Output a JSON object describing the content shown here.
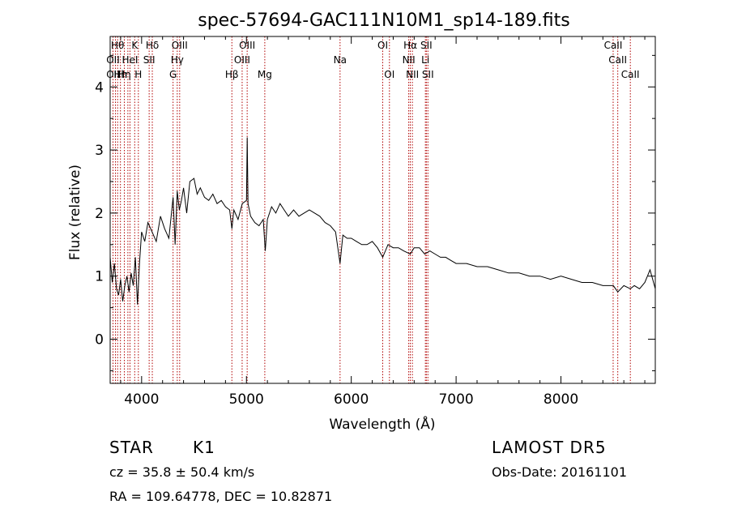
{
  "chart_data": {
    "type": "line",
    "title": "spec-57694-GAC111N10M1_sp14-189.fits",
    "xlabel": "Wavelength (Å)",
    "ylabel": "Flux (relative)",
    "xlim": [
      3700,
      8900
    ],
    "ylim": [
      -0.7,
      4.8
    ],
    "xticks": [
      4000,
      5000,
      6000,
      7000,
      8000
    ],
    "yticks": [
      0,
      1,
      2,
      3,
      4
    ],
    "line_color": "#000000",
    "marker_color": "#b00000",
    "series": [
      {
        "x": [
          3700,
          3720,
          3740,
          3760,
          3780,
          3800,
          3820,
          3840,
          3860,
          3880,
          3900,
          3920,
          3940,
          3960,
          3980,
          4000,
          4030,
          4060,
          4100,
          4140,
          4180,
          4220,
          4260,
          4300,
          4320,
          4340,
          4360,
          4380,
          4400,
          4430,
          4460,
          4500,
          4530,
          4560,
          4600,
          4640,
          4680,
          4720,
          4760,
          4800,
          4840,
          4861,
          4880,
          4920,
          4960,
          5000,
          5007,
          5015,
          5040,
          5080,
          5120,
          5160,
          5180,
          5200,
          5240,
          5280,
          5320,
          5360,
          5400,
          5450,
          5500,
          5550,
          5600,
          5650,
          5700,
          5750,
          5800,
          5850,
          5893,
          5920,
          5960,
          6000,
          6050,
          6100,
          6150,
          6200,
          6250,
          6300,
          6350,
          6400,
          6450,
          6500,
          6563,
          6600,
          6650,
          6700,
          6750,
          6800,
          6850,
          6900,
          6950,
          7000,
          7100,
          7200,
          7300,
          7400,
          7500,
          7600,
          7700,
          7800,
          7900,
          8000,
          8100,
          8200,
          8300,
          8400,
          8500,
          8542,
          8600,
          8662,
          8700,
          8750,
          8800,
          8850,
          8900
        ],
        "y": [
          1.3,
          0.9,
          1.2,
          0.8,
          0.7,
          0.95,
          0.6,
          0.85,
          1.0,
          0.75,
          1.05,
          0.85,
          1.3,
          0.55,
          1.2,
          1.7,
          1.55,
          1.85,
          1.7,
          1.55,
          1.95,
          1.75,
          1.6,
          2.25,
          1.5,
          2.35,
          2.05,
          2.2,
          2.4,
          2.0,
          2.5,
          2.55,
          2.3,
          2.4,
          2.25,
          2.2,
          2.3,
          2.15,
          2.2,
          2.1,
          2.05,
          1.75,
          2.05,
          1.9,
          2.15,
          2.2,
          3.2,
          2.15,
          1.95,
          1.85,
          1.8,
          1.9,
          1.4,
          1.9,
          2.1,
          2.0,
          2.15,
          2.05,
          1.95,
          2.05,
          1.95,
          2.0,
          2.05,
          2.0,
          1.95,
          1.85,
          1.8,
          1.7,
          1.2,
          1.65,
          1.6,
          1.6,
          1.55,
          1.5,
          1.5,
          1.55,
          1.45,
          1.3,
          1.5,
          1.45,
          1.45,
          1.4,
          1.35,
          1.45,
          1.45,
          1.35,
          1.4,
          1.35,
          1.3,
          1.3,
          1.25,
          1.2,
          1.2,
          1.15,
          1.15,
          1.1,
          1.05,
          1.05,
          1.0,
          1.0,
          0.95,
          1.0,
          0.95,
          0.9,
          0.9,
          0.85,
          0.85,
          0.75,
          0.85,
          0.8,
          0.85,
          0.8,
          0.9,
          1.1,
          0.8
        ]
      }
    ],
    "lines": [
      {
        "x": 3727,
        "rows": [
          [
            "OII",
            1
          ],
          [
            "OII",
            2
          ]
        ]
      },
      {
        "x": 3750,
        "rows": []
      },
      {
        "x": 3771,
        "rows": [
          [
            "Hθ",
            0
          ]
        ]
      },
      {
        "x": 3798,
        "rows": [
          [
            "Hh",
            2
          ]
        ]
      },
      {
        "x": 3835,
        "rows": [
          [
            "Hη",
            2
          ]
        ]
      },
      {
        "x": 3869,
        "rows": []
      },
      {
        "x": 3889,
        "rows": [
          [
            "HeI",
            1
          ]
        ]
      },
      {
        "x": 3934,
        "rows": [
          [
            "K",
            0
          ]
        ]
      },
      {
        "x": 3969,
        "rows": [
          [
            "H",
            2
          ]
        ]
      },
      {
        "x": 4072,
        "rows": [
          [
            "SII",
            1
          ]
        ]
      },
      {
        "x": 4102,
        "rows": [
          [
            "Hδ",
            0
          ]
        ]
      },
      {
        "x": 4300,
        "rows": [
          [
            "G",
            2
          ]
        ]
      },
      {
        "x": 4340,
        "rows": [
          [
            "Hγ",
            1
          ]
        ]
      },
      {
        "x": 4363,
        "rows": [
          [
            "OIII",
            0
          ]
        ]
      },
      {
        "x": 4861,
        "rows": [
          [
            "Hβ",
            2
          ]
        ]
      },
      {
        "x": 4959,
        "rows": [
          [
            "OIII",
            1
          ]
        ]
      },
      {
        "x": 5007,
        "rows": [
          [
            "OIII",
            0
          ]
        ]
      },
      {
        "x": 5175,
        "rows": [
          [
            "Mg",
            2
          ]
        ]
      },
      {
        "x": 5893,
        "rows": [
          [
            "Na",
            1
          ]
        ]
      },
      {
        "x": 6300,
        "rows": [
          [
            "OI",
            0
          ]
        ]
      },
      {
        "x": 6364,
        "rows": [
          [
            "OI",
            2
          ]
        ]
      },
      {
        "x": 6548,
        "rows": [
          [
            "NII",
            1
          ]
        ]
      },
      {
        "x": 6563,
        "rows": [
          [
            "Hα",
            0
          ]
        ]
      },
      {
        "x": 6583,
        "rows": [
          [
            "NII",
            2
          ]
        ]
      },
      {
        "x": 6707,
        "rows": [
          [
            "Li",
            1
          ]
        ]
      },
      {
        "x": 6716,
        "rows": [
          [
            "SII",
            0
          ]
        ]
      },
      {
        "x": 6731,
        "rows": [
          [
            "SII",
            2
          ]
        ]
      },
      {
        "x": 8498,
        "rows": [
          [
            "CaII",
            0
          ]
        ]
      },
      {
        "x": 8542,
        "rows": [
          [
            "CaII",
            1
          ]
        ]
      },
      {
        "x": 8662,
        "rows": [
          [
            "CaII",
            2
          ]
        ]
      }
    ]
  },
  "footer": {
    "object_class": "STAR",
    "subclass": "K1",
    "survey": "LAMOST DR5",
    "cz": "cz = 35.8 ± 50.4 km/s",
    "obs_date": "Obs-Date: 20161101",
    "coords": "RA = 109.64778, DEC =  10.82871"
  }
}
